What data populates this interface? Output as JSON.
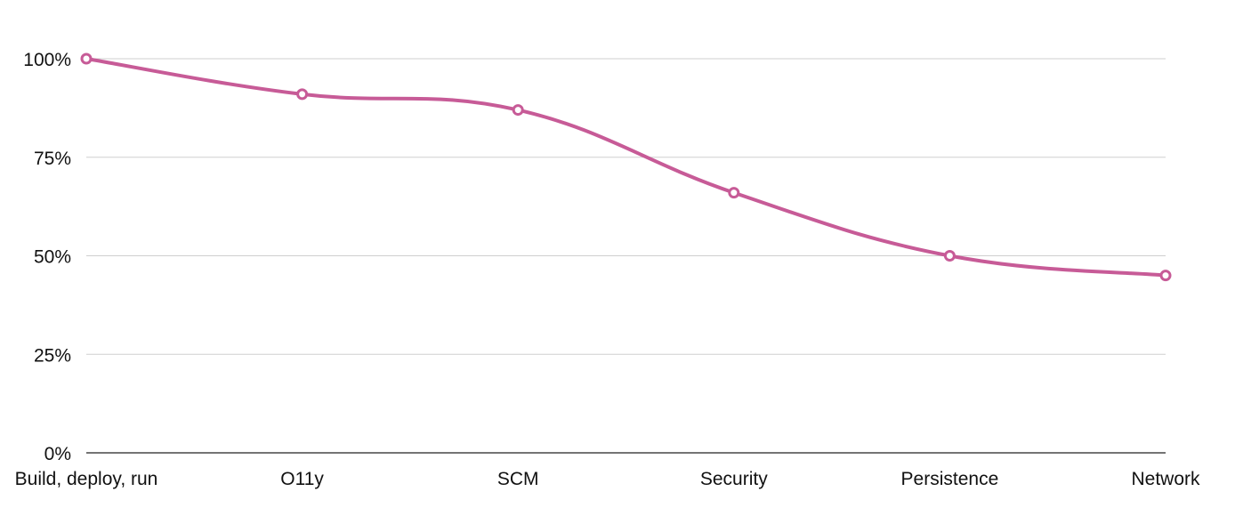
{
  "chart_data": {
    "type": "line",
    "title": "",
    "xlabel": "",
    "ylabel": "",
    "categories": [
      "Build, deploy, run",
      "O11y",
      "SCM",
      "Security",
      "Persistence",
      "Network"
    ],
    "series": [
      {
        "values": [
          100,
          91,
          87,
          66,
          50,
          45
        ]
      }
    ],
    "ylim": [
      0,
      100
    ],
    "yticks": [
      0,
      25,
      50,
      75,
      100
    ],
    "ytick_labels": [
      "0%",
      "25%",
      "50%",
      "75%",
      "100%"
    ],
    "grid": true,
    "legend": "none",
    "colors": {
      "line": "#c75b97",
      "grid": "#cfcfcf",
      "axis": "#222222",
      "text": "#111111"
    }
  }
}
